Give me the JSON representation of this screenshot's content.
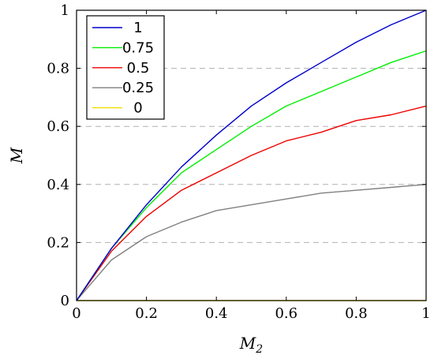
{
  "chart_data": {
    "type": "line",
    "title": "",
    "xlabel": "M",
    "xlabel_sub": "2",
    "ylabel": "M",
    "xlim": [
      0,
      1
    ],
    "ylim": [
      0,
      1
    ],
    "xticks": [
      0,
      0.2,
      0.4,
      0.6,
      0.8,
      1
    ],
    "yticks": [
      0,
      0.2,
      0.4,
      0.6,
      0.8,
      1
    ],
    "xtick_labels": [
      "0",
      "0.2",
      "0.4",
      "0.6",
      "0.8",
      "1"
    ],
    "ytick_labels": [
      "0",
      "0.2",
      "0.4",
      "0.6",
      "0.8",
      "1"
    ],
    "grid": "y-dashed",
    "legend_position": "top-left",
    "x": [
      0,
      0.1,
      0.2,
      0.3,
      0.4,
      0.5,
      0.6,
      0.7,
      0.8,
      0.9,
      1.0
    ],
    "series": [
      {
        "name": "1",
        "color": "#0000cc",
        "values": [
          0,
          0.18,
          0.33,
          0.46,
          0.57,
          0.67,
          0.75,
          0.82,
          0.89,
          0.95,
          1.0
        ]
      },
      {
        "name": "0.75",
        "color": "#00ee00",
        "values": [
          0,
          0.18,
          0.32,
          0.44,
          0.52,
          0.6,
          0.67,
          0.72,
          0.77,
          0.82,
          0.86
        ]
      },
      {
        "name": "0.5",
        "color": "#ee0000",
        "values": [
          0,
          0.17,
          0.29,
          0.38,
          0.44,
          0.5,
          0.55,
          0.58,
          0.62,
          0.64,
          0.67
        ]
      },
      {
        "name": "0.25",
        "color": "#808080",
        "values": [
          0,
          0.14,
          0.22,
          0.27,
          0.31,
          0.33,
          0.35,
          0.37,
          0.38,
          0.39,
          0.4
        ]
      },
      {
        "name": "0",
        "color": "#eedd00",
        "values": [
          0,
          0,
          0,
          0,
          0,
          0,
          0,
          0,
          0,
          0,
          0
        ]
      }
    ]
  }
}
